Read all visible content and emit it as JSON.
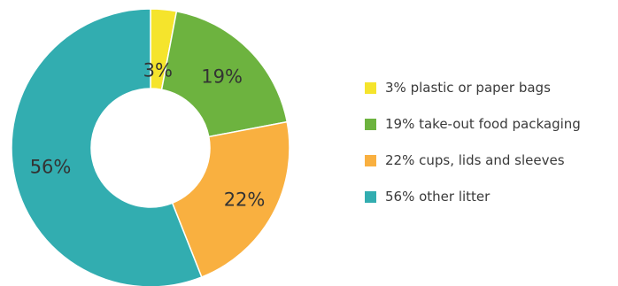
{
  "chart_data": {
    "type": "pie",
    "style": "donut",
    "slices": [
      {
        "label": "3%",
        "legend": "3% plastic or paper bags",
        "value": 3,
        "color": "#f5e42c"
      },
      {
        "label": "19%",
        "legend": "19% take-out food packaging",
        "value": 19,
        "color": "#6db33f"
      },
      {
        "label": "22%",
        "legend": "22% cups, lids and sleeves",
        "value": 22,
        "color": "#f9b040"
      },
      {
        "label": "56%",
        "legend": "56% other litter",
        "value": 56,
        "color": "#32adb0"
      }
    ],
    "legend_position": "right"
  }
}
